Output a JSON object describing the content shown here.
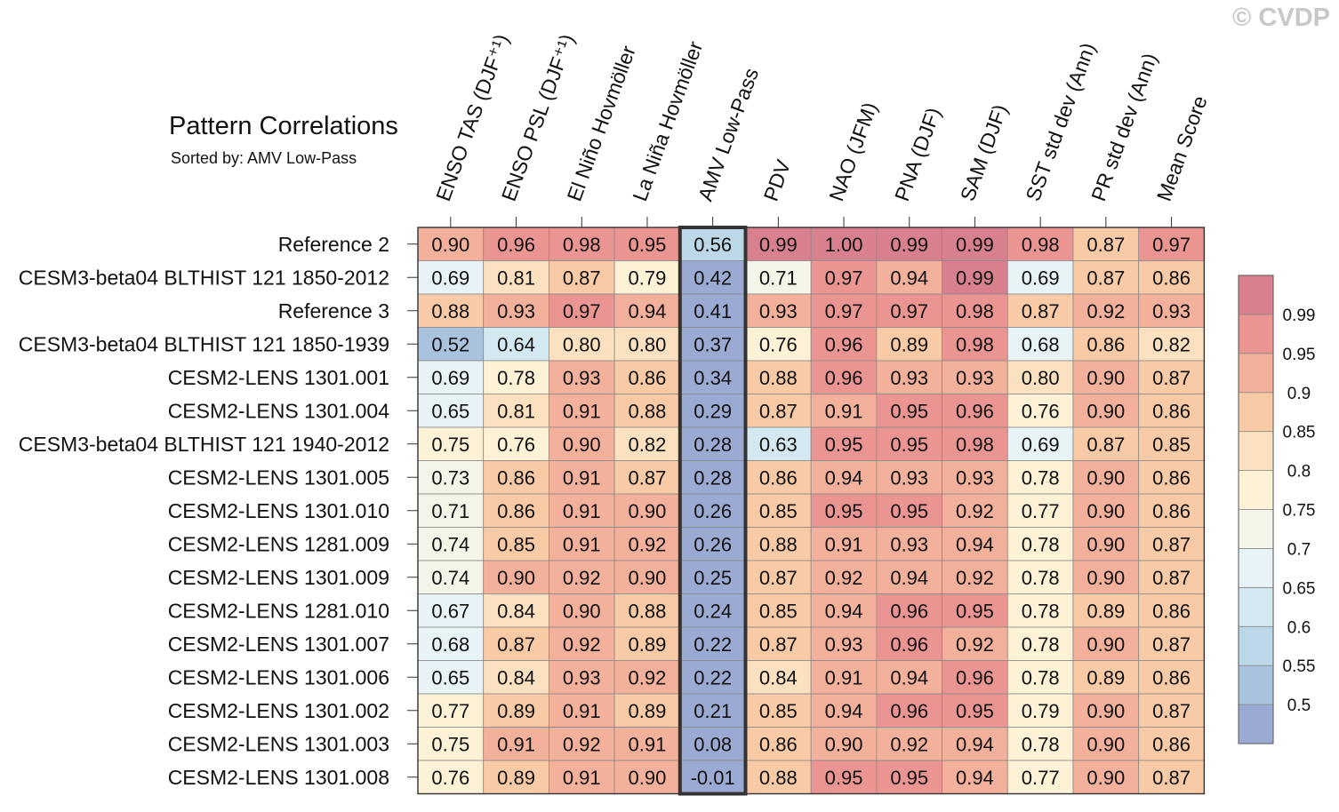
{
  "watermark": "© CVDP",
  "chart_data": {
    "type": "heatmap",
    "title": "Pattern Correlations",
    "subtitle": "Sorted by: AMV Low-Pass",
    "columns": [
      "ENSO TAS (DJF⁺¹)",
      "ENSO PSL (DJF⁺¹)",
      "El Niño Hovmöller",
      "La Niña Hovmöller",
      "AMV Low-Pass",
      "PDV",
      "NAO (JFM)",
      "PNA (DJF)",
      "SAM (DJF)",
      "SST std dev (Ann)",
      "PR std dev (Ann)",
      "Mean Score"
    ],
    "highlighted_column": "AMV Low-Pass",
    "rows": [
      "Reference 2",
      "CESM3-beta04 BLTHIST 121 1850-2012",
      "Reference 3",
      "CESM3-beta04 BLTHIST 121 1850-1939",
      "CESM2-LENS 1301.001",
      "CESM2-LENS 1301.004",
      "CESM3-beta04 BLTHIST 121 1940-2012",
      "CESM2-LENS 1301.005",
      "CESM2-LENS 1301.010",
      "CESM2-LENS 1281.009",
      "CESM2-LENS 1301.009",
      "CESM2-LENS 1281.010",
      "CESM2-LENS 1301.007",
      "CESM2-LENS 1301.006",
      "CESM2-LENS 1301.002",
      "CESM2-LENS 1301.003",
      "CESM2-LENS 1301.008"
    ],
    "values": [
      [
        "0.90",
        "0.96",
        "0.98",
        "0.95",
        "0.56",
        "0.99",
        "1.00",
        "0.99",
        "0.99",
        "0.98",
        "0.87",
        "0.97"
      ],
      [
        "0.69",
        "0.81",
        "0.87",
        "0.79",
        "0.42",
        "0.71",
        "0.97",
        "0.94",
        "0.99",
        "0.69",
        "0.87",
        "0.86"
      ],
      [
        "0.88",
        "0.93",
        "0.97",
        "0.94",
        "0.41",
        "0.93",
        "0.97",
        "0.97",
        "0.98",
        "0.87",
        "0.92",
        "0.93"
      ],
      [
        "0.52",
        "0.64",
        "0.80",
        "0.80",
        "0.37",
        "0.76",
        "0.96",
        "0.89",
        "0.98",
        "0.68",
        "0.86",
        "0.82"
      ],
      [
        "0.69",
        "0.78",
        "0.93",
        "0.86",
        "0.34",
        "0.88",
        "0.96",
        "0.93",
        "0.93",
        "0.80",
        "0.90",
        "0.87"
      ],
      [
        "0.65",
        "0.81",
        "0.91",
        "0.88",
        "0.29",
        "0.87",
        "0.91",
        "0.95",
        "0.96",
        "0.76",
        "0.90",
        "0.86"
      ],
      [
        "0.75",
        "0.76",
        "0.90",
        "0.82",
        "0.28",
        "0.63",
        "0.95",
        "0.95",
        "0.98",
        "0.69",
        "0.87",
        "0.85"
      ],
      [
        "0.73",
        "0.86",
        "0.91",
        "0.87",
        "0.28",
        "0.86",
        "0.94",
        "0.93",
        "0.93",
        "0.78",
        "0.90",
        "0.86"
      ],
      [
        "0.71",
        "0.86",
        "0.91",
        "0.90",
        "0.26",
        "0.85",
        "0.95",
        "0.95",
        "0.92",
        "0.77",
        "0.90",
        "0.86"
      ],
      [
        "0.74",
        "0.85",
        "0.91",
        "0.92",
        "0.26",
        "0.88",
        "0.91",
        "0.93",
        "0.94",
        "0.78",
        "0.90",
        "0.87"
      ],
      [
        "0.74",
        "0.90",
        "0.92",
        "0.90",
        "0.25",
        "0.87",
        "0.92",
        "0.94",
        "0.92",
        "0.78",
        "0.90",
        "0.87"
      ],
      [
        "0.67",
        "0.84",
        "0.90",
        "0.88",
        "0.24",
        "0.85",
        "0.94",
        "0.96",
        "0.95",
        "0.78",
        "0.89",
        "0.86"
      ],
      [
        "0.68",
        "0.87",
        "0.92",
        "0.89",
        "0.22",
        "0.87",
        "0.93",
        "0.96",
        "0.92",
        "0.78",
        "0.90",
        "0.87"
      ],
      [
        "0.65",
        "0.84",
        "0.93",
        "0.92",
        "0.22",
        "0.84",
        "0.91",
        "0.94",
        "0.96",
        "0.78",
        "0.89",
        "0.86"
      ],
      [
        "0.77",
        "0.89",
        "0.91",
        "0.89",
        "0.21",
        "0.85",
        "0.94",
        "0.96",
        "0.95",
        "0.79",
        "0.90",
        "0.87"
      ],
      [
        "0.75",
        "0.91",
        "0.92",
        "0.91",
        "0.08",
        "0.86",
        "0.90",
        "0.92",
        "0.94",
        "0.78",
        "0.90",
        "0.86"
      ],
      [
        "0.76",
        "0.89",
        "0.91",
        "0.90",
        "-0.01",
        "0.88",
        "0.95",
        "0.95",
        "0.94",
        "0.77",
        "0.90",
        "0.87"
      ]
    ],
    "colorbar": {
      "labels": [
        "0.99",
        "0.95",
        "0.9",
        "0.85",
        "0.8",
        "0.75",
        "0.7",
        "0.65",
        "0.6",
        "0.55",
        "0.5"
      ],
      "thresholds": [
        0.5,
        0.55,
        0.6,
        0.65,
        0.7,
        0.75,
        0.8,
        0.85,
        0.9,
        0.95,
        0.99
      ],
      "colors": [
        "#9aaad2",
        "#a9c3df",
        "#bcd8e8",
        "#d3e8f0",
        "#e8f3f7",
        "#f4f4e8",
        "#fdf1d6",
        "#fbe1bf",
        "#f8caa6",
        "#f3b09a",
        "#eb9592",
        "#d9808f"
      ]
    }
  }
}
